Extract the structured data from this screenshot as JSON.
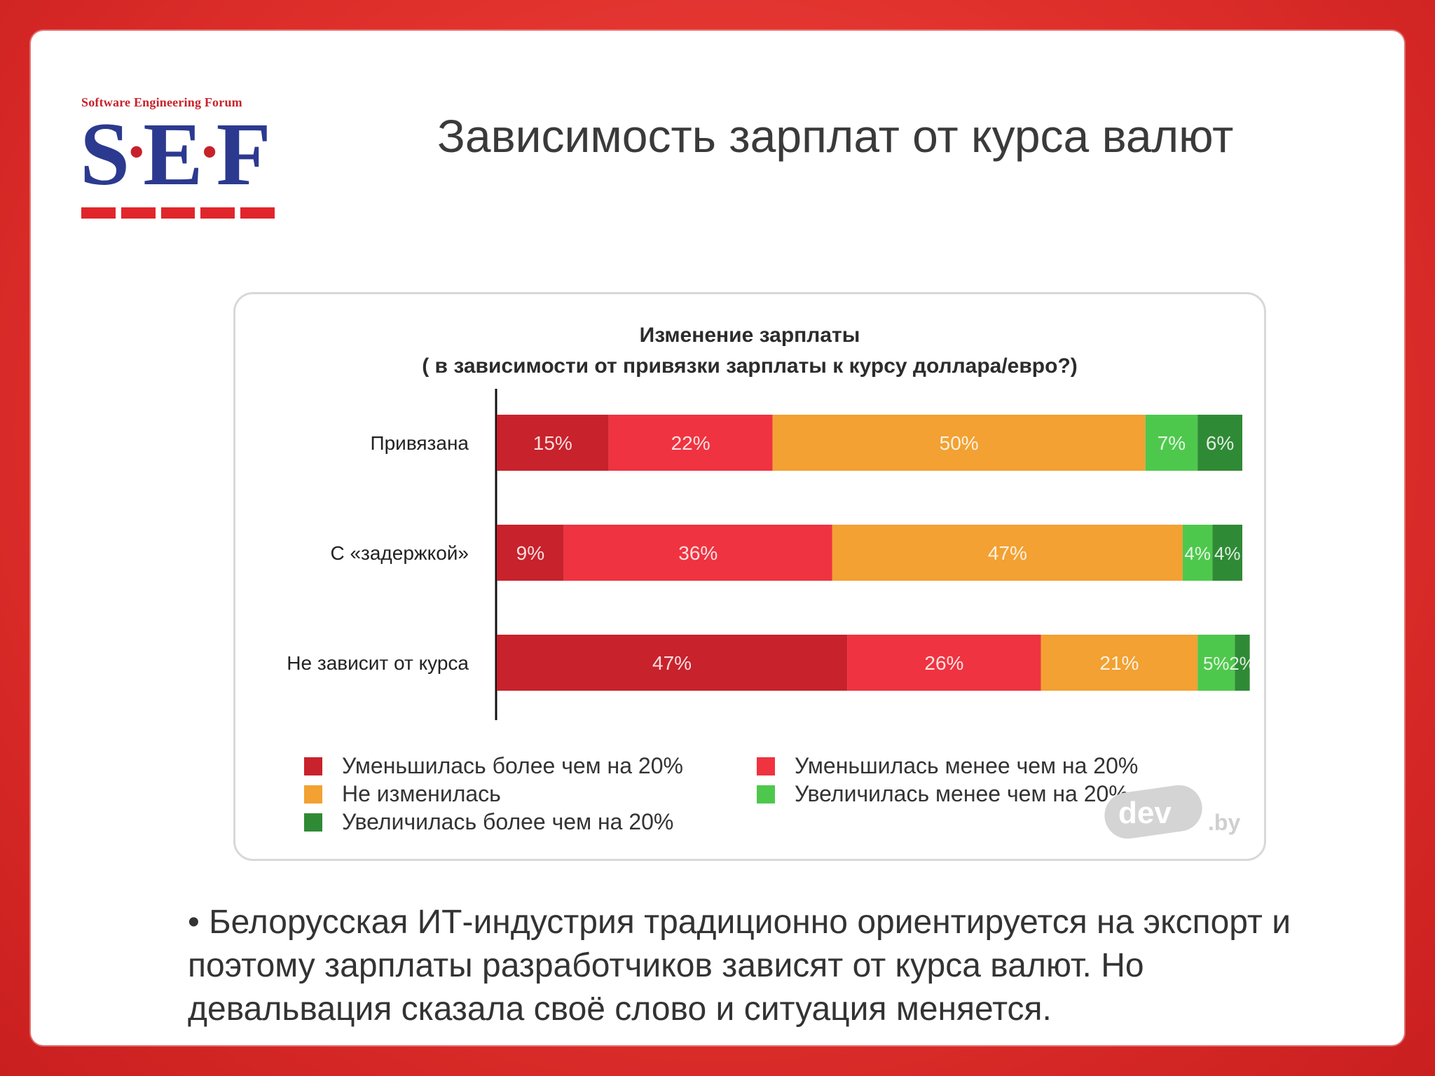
{
  "slide": {
    "title": "Зависимость зарплат от курса валют",
    "logo": {
      "tagline": "Software Engineering Forum",
      "letters": [
        "S",
        "E",
        "F"
      ]
    },
    "bullet": "• Белорусская ИТ-индустрия традиционно ориентируется на экспорт и поэтому зарплаты разработчиков зависят от курса валют. Но девальвация сказала своё слово и ситуация меняется.",
    "watermark": {
      "logo_text": "dev",
      "suffix": ".by"
    }
  },
  "chart_data": {
    "type": "bar",
    "orientation": "horizontal",
    "stacked": true,
    "title": "Изменение зарплаты",
    "subtitle": "( в зависимости от привязки зарплаты к курсу доллара/евро?)",
    "categories": [
      "Привязана",
      "С «задержкой»",
      "Не зависит от курса"
    ],
    "xlim": [
      0,
      100
    ],
    "series": [
      {
        "name": "Уменьшилась более чем на 20%",
        "color": "#c8222c",
        "values": [
          15,
          9,
          47
        ]
      },
      {
        "name": "Уменьшилась менее чем на 20%",
        "color": "#ef3340",
        "values": [
          22,
          36,
          26
        ]
      },
      {
        "name": "Не изменилась",
        "color": "#f2a132",
        "values": [
          50,
          47,
          21
        ]
      },
      {
        "name": "Увеличилась менее чем на 20%",
        "color": "#4ec84c",
        "values": [
          7,
          4,
          5
        ]
      },
      {
        "name": "Увеличилась более чем на 20%",
        "color": "#2f8a35",
        "values": [
          6,
          4,
          2
        ]
      }
    ],
    "bar_labels": [
      [
        "15%",
        "22%",
        "50%",
        "7%",
        "6%"
      ],
      [
        "9%",
        "36%",
        "47%",
        "4%",
        "4%"
      ],
      [
        "47%",
        "26%",
        "21%",
        "5%",
        "2%"
      ]
    ],
    "legend": [
      {
        "label": "Уменьшилась более чем на 20%",
        "color": "#c8222c"
      },
      {
        "label": "Уменьшилась менее чем на 20%",
        "color": "#ef3340"
      },
      {
        "label": "Не изменилась",
        "color": "#f2a132"
      },
      {
        "label": "Увеличилась менее чем на 20%",
        "color": "#4ec84c"
      },
      {
        "label": "Увеличилась более чем на 20%",
        "color": "#2f8a35"
      }
    ]
  }
}
